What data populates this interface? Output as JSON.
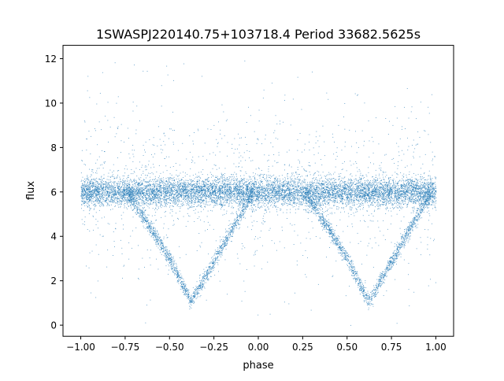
{
  "chart_data": {
    "type": "scatter",
    "title": "1SWASPJ220140.75+103718.4 Period 33682.5625s",
    "xlabel": "phase",
    "ylabel": "flux",
    "xlim": [
      -1.1,
      1.1
    ],
    "ylim": [
      -0.5,
      12.6
    ],
    "xticks": [
      -1.0,
      -0.75,
      -0.5,
      -0.25,
      0.0,
      0.25,
      0.5,
      0.75,
      1.0
    ],
    "xtick_labels": [
      "−1.00",
      "−0.75",
      "−0.50",
      "−0.25",
      "0.00",
      "0.25",
      "0.50",
      "0.75",
      "1.00"
    ],
    "yticks": [
      0,
      2,
      4,
      6,
      8,
      10,
      12
    ],
    "ytick_labels": [
      "0",
      "2",
      "4",
      "6",
      "8",
      "10",
      "12"
    ],
    "grid": false,
    "legend": "none",
    "point_color": "#1f77b4",
    "series": [
      {
        "description_values": "phase-folded light curve: out-of-eclipse band centred near flux 6.0, eclipses reaching ~1.1",
        "baseline_flux": 6.0,
        "eclipses": [
          {
            "center_phase": -0.38,
            "min_flux": 1.1,
            "start_phase": -0.74,
            "end_phase": -0.03
          },
          {
            "center_phase": 0.62,
            "min_flux": 1.1,
            "start_phase": 0.26,
            "end_phase": 0.97
          }
        ],
        "profile_x": [
          -1.0,
          -0.74,
          -0.6,
          -0.5,
          -0.42,
          -0.38,
          -0.34,
          -0.25,
          -0.15,
          -0.03,
          0.0,
          0.26,
          0.4,
          0.5,
          0.58,
          0.62,
          0.66,
          0.75,
          0.85,
          0.97,
          1.0
        ],
        "profile_y": [
          6.0,
          6.0,
          4.3,
          3.0,
          1.7,
          1.1,
          1.6,
          2.9,
          4.3,
          6.0,
          6.0,
          6.0,
          4.3,
          3.0,
          1.7,
          1.1,
          1.6,
          2.9,
          4.3,
          6.0,
          6.0
        ]
      }
    ]
  }
}
